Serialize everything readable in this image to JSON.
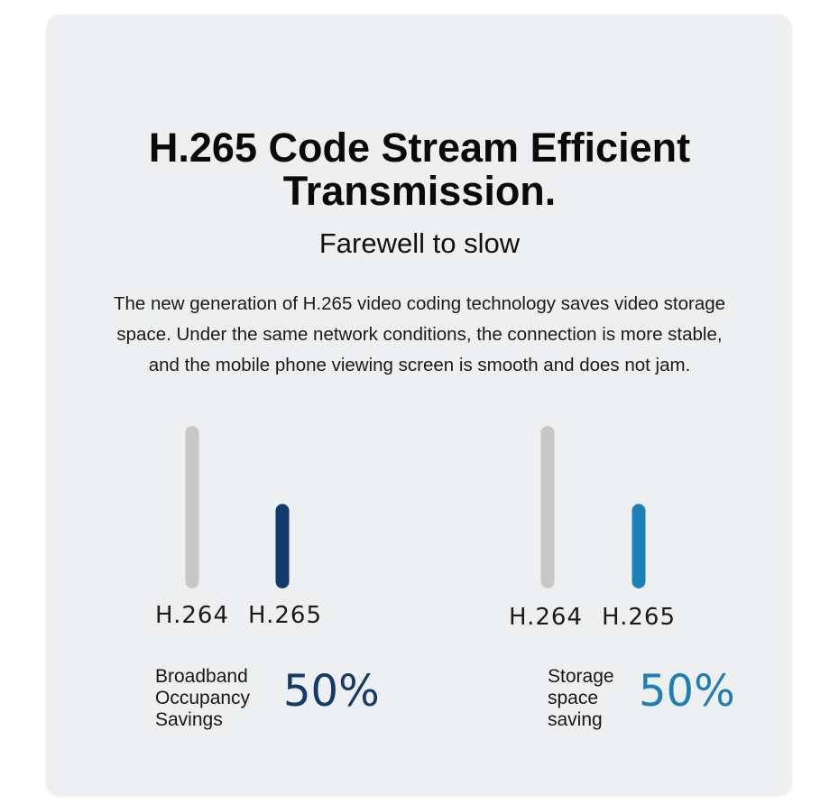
{
  "title_line1": "H.265 Code Stream Efficient",
  "title_line2": "Transmission.",
  "subtitle": "Farewell to slow",
  "description_lines": [
    "The new generation of H.265 video coding technology saves video storage",
    "space. Under the same network conditions, the connection is more stable,",
    "and the mobile phone viewing screen is smooth and does not jam."
  ],
  "colors": {
    "card_background": "#edeff0",
    "h264_bar": "#c8c8c8",
    "bandwidth_accent": "#123a6a",
    "storage_accent": "#1b7fb8"
  },
  "chart_data": [
    {
      "type": "bar",
      "categories": [
        "H.264",
        "H.265"
      ],
      "values": [
        100,
        50
      ],
      "caption": "Broadband\nOccupancy\nSavings",
      "highlight": "50%",
      "grid": false,
      "legend": "none"
    },
    {
      "type": "bar",
      "categories": [
        "H.264",
        "H.265"
      ],
      "values": [
        100,
        50
      ],
      "caption": "Storage\nspace\nsaving",
      "highlight": "50%",
      "grid": false,
      "legend": "none"
    }
  ]
}
